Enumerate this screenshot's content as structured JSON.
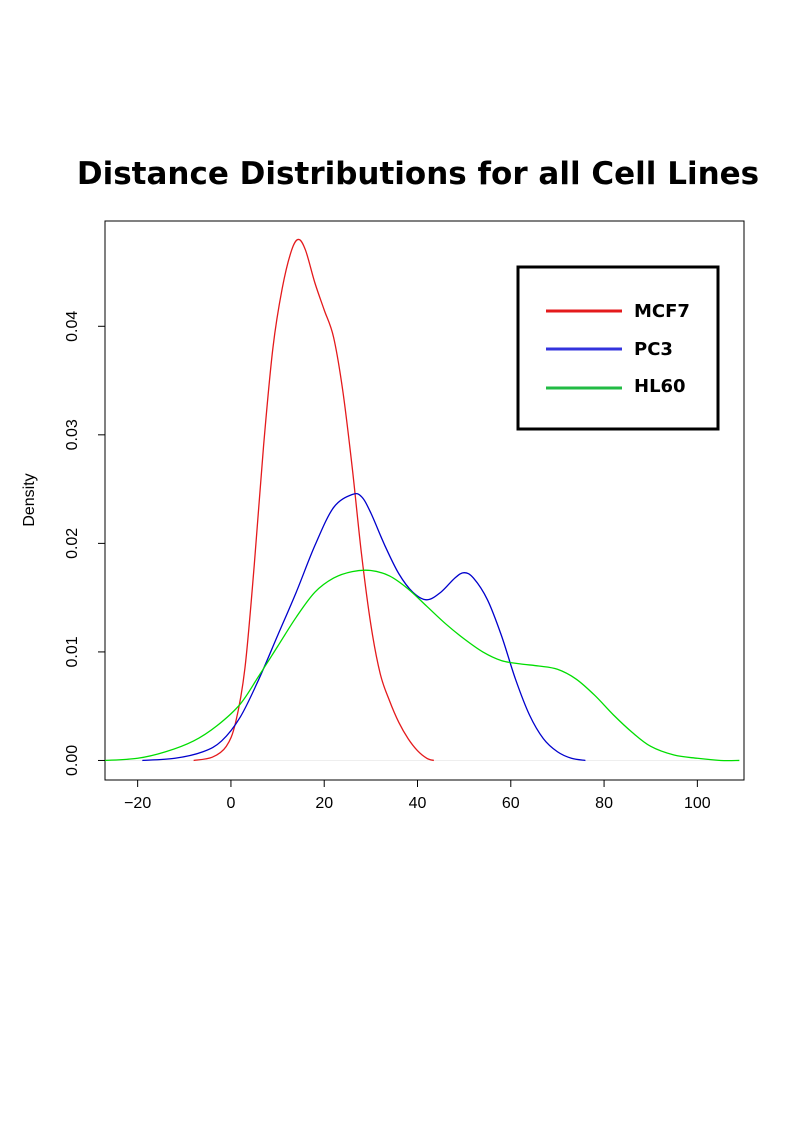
{
  "chart_data": {
    "type": "line",
    "title": "Distance Distributions for all Cell Lines",
    "xlabel": "",
    "ylabel": "Density",
    "xlim": [
      -27,
      110
    ],
    "ylim": [
      -0.0018,
      0.0497
    ],
    "x_ticks": [
      -20,
      0,
      20,
      40,
      60,
      80,
      100
    ],
    "y_ticks": [
      0.0,
      0.01,
      0.02,
      0.03,
      0.04
    ],
    "y_tick_labels": [
      "0.00",
      "0.01",
      "0.02",
      "0.03",
      "0.04"
    ],
    "x_tick_labels": [
      "−20",
      "0",
      "20",
      "40",
      "60",
      "80",
      "100"
    ],
    "grid": false,
    "legend_position": "top-right",
    "series": [
      {
        "name": "MCF7",
        "color": "#e41a1c",
        "points": [
          [
            -8,
            0.0
          ],
          [
            -4,
            0.0003
          ],
          [
            -1,
            0.0013
          ],
          [
            1,
            0.0035
          ],
          [
            3,
            0.0085
          ],
          [
            5,
            0.018
          ],
          [
            7,
            0.029
          ],
          [
            9,
            0.038
          ],
          [
            11,
            0.0435
          ],
          [
            13,
            0.047
          ],
          [
            14.5,
            0.048
          ],
          [
            16,
            0.047
          ],
          [
            18,
            0.044
          ],
          [
            20,
            0.0415
          ],
          [
            22,
            0.039
          ],
          [
            24,
            0.034
          ],
          [
            26,
            0.027
          ],
          [
            28,
            0.019
          ],
          [
            30,
            0.0125
          ],
          [
            32,
            0.008
          ],
          [
            34,
            0.0055
          ],
          [
            36,
            0.0035
          ],
          [
            38,
            0.002
          ],
          [
            40,
            0.0009
          ],
          [
            42,
            0.0002
          ],
          [
            43.5,
            0.0
          ]
        ]
      },
      {
        "name": "PC3",
        "color": "#0000cc",
        "points": [
          [
            -19,
            0.0
          ],
          [
            -12,
            0.0002
          ],
          [
            -6,
            0.0008
          ],
          [
            -2,
            0.0018
          ],
          [
            2,
            0.004
          ],
          [
            6,
            0.0075
          ],
          [
            10,
            0.0115
          ],
          [
            14,
            0.0155
          ],
          [
            18,
            0.0198
          ],
          [
            22,
            0.0233
          ],
          [
            26,
            0.0245
          ],
          [
            28,
            0.0243
          ],
          [
            30,
            0.0228
          ],
          [
            33,
            0.0198
          ],
          [
            36,
            0.0172
          ],
          [
            39,
            0.0155
          ],
          [
            42,
            0.0148
          ],
          [
            45,
            0.0155
          ],
          [
            48,
            0.0168
          ],
          [
            50,
            0.0173
          ],
          [
            52,
            0.0168
          ],
          [
            55,
            0.0148
          ],
          [
            58,
            0.0115
          ],
          [
            61,
            0.0075
          ],
          [
            64,
            0.0042
          ],
          [
            67,
            0.002
          ],
          [
            70,
            0.0008
          ],
          [
            73,
            0.0002
          ],
          [
            76,
            0.0
          ]
        ]
      },
      {
        "name": "HL60",
        "color": "#00dd00",
        "points": [
          [
            -27,
            0.0
          ],
          [
            -20,
            0.0002
          ],
          [
            -14,
            0.0008
          ],
          [
            -8,
            0.0018
          ],
          [
            -3,
            0.0032
          ],
          [
            2,
            0.0052
          ],
          [
            6,
            0.0078
          ],
          [
            10,
            0.0105
          ],
          [
            14,
            0.0132
          ],
          [
            18,
            0.0155
          ],
          [
            22,
            0.0168
          ],
          [
            26,
            0.0174
          ],
          [
            30,
            0.0175
          ],
          [
            34,
            0.017
          ],
          [
            38,
            0.0158
          ],
          [
            42,
            0.0142
          ],
          [
            46,
            0.0126
          ],
          [
            50,
            0.0112
          ],
          [
            54,
            0.01
          ],
          [
            58,
            0.0092
          ],
          [
            62,
            0.0089
          ],
          [
            66,
            0.0087
          ],
          [
            70,
            0.0084
          ],
          [
            74,
            0.0075
          ],
          [
            78,
            0.006
          ],
          [
            82,
            0.0042
          ],
          [
            86,
            0.0026
          ],
          [
            90,
            0.0013
          ],
          [
            95,
            0.0005
          ],
          [
            100,
            0.0002
          ],
          [
            105,
            0.0
          ],
          [
            109,
            0.0
          ]
        ]
      }
    ]
  },
  "legend": {
    "items": [
      {
        "label": "MCF7",
        "color": "#e41a1c"
      },
      {
        "label": "PC3",
        "color": "#3333dd"
      },
      {
        "label": "HL60",
        "color": "#22bb44"
      }
    ]
  }
}
